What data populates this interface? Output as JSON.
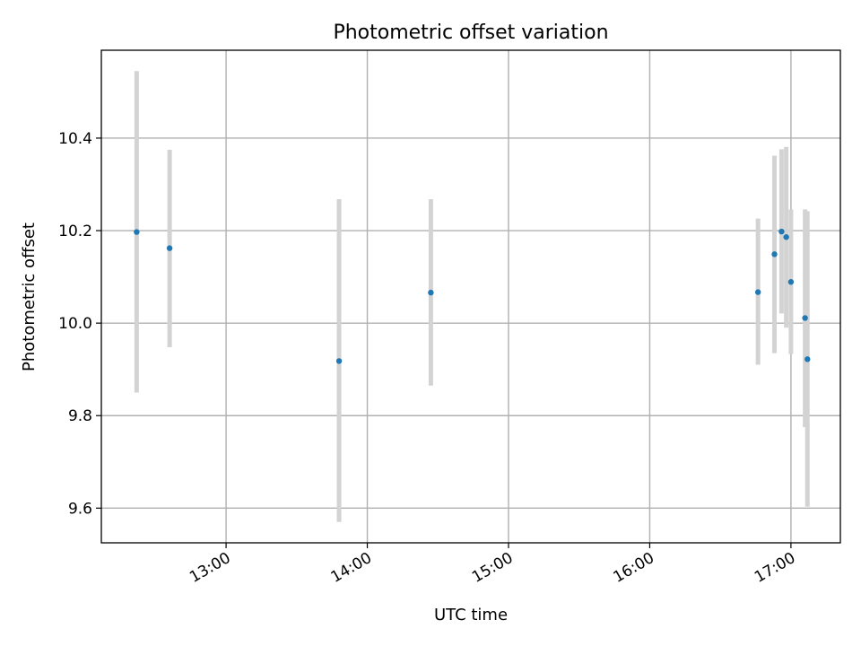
{
  "chart_data": {
    "type": "scatter",
    "title": "Photometric offset variation",
    "xlabel": "UTC time",
    "ylabel": "Photometric offset",
    "x_unit": "UTC time (HH:MM)",
    "xlim": [
      "12:07",
      "17:21"
    ],
    "ylim": [
      9.525,
      10.59
    ],
    "xticks": [
      "13:00",
      "14:00",
      "15:00",
      "16:00",
      "17:00"
    ],
    "yticks": [
      9.6,
      9.8,
      10.0,
      10.2,
      10.4
    ],
    "ytick_labels": [
      "9.6",
      "9.8",
      "10.0",
      "10.2",
      "10.4"
    ],
    "grid": true,
    "legend": "none",
    "point_color": "#1f77b4",
    "errorbar_color": "#d3d3d3",
    "points": [
      {
        "x": "12:22",
        "y": 10.197,
        "ylow": 9.85,
        "yhigh": 10.545
      },
      {
        "x": "12:36",
        "y": 10.162,
        "ylow": 9.948,
        "yhigh": 10.375
      },
      {
        "x": "13:48",
        "y": 9.918,
        "ylow": 9.57,
        "yhigh": 10.268
      },
      {
        "x": "14:27",
        "y": 10.066,
        "ylow": 9.865,
        "yhigh": 10.268
      },
      {
        "x": "16:46",
        "y": 10.067,
        "ylow": 9.91,
        "yhigh": 10.226
      },
      {
        "x": "16:53",
        "y": 10.149,
        "ylow": 9.935,
        "yhigh": 10.362
      },
      {
        "x": "16:56",
        "y": 10.198,
        "ylow": 10.021,
        "yhigh": 10.376
      },
      {
        "x": "16:58",
        "y": 10.186,
        "ylow": 9.99,
        "yhigh": 10.381
      },
      {
        "x": "17:00",
        "y": 10.089,
        "ylow": 9.933,
        "yhigh": 10.246
      },
      {
        "x": "17:06",
        "y": 10.011,
        "ylow": 9.775,
        "yhigh": 10.246
      },
      {
        "x": "17:07",
        "y": 9.922,
        "ylow": 9.603,
        "yhigh": 10.242
      }
    ]
  }
}
